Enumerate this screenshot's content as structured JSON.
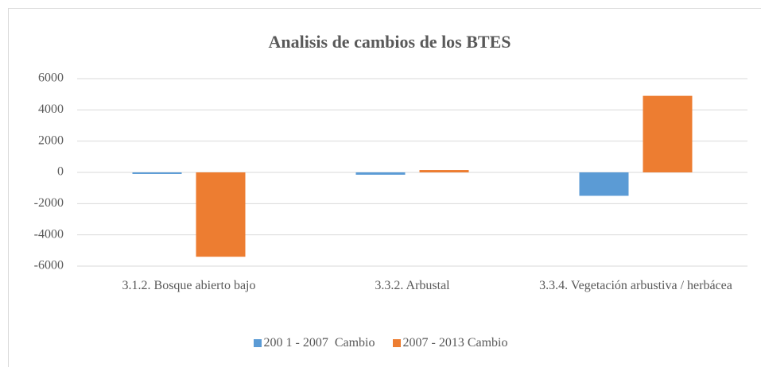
{
  "chart_data": {
    "type": "bar",
    "title": "Analisis de cambios de los BTES",
    "categories": [
      "3.1.2. Bosque abierto bajo",
      "3.3.2. Arbustal",
      "3.3.4. Vegetación arbustiva / herbácea"
    ],
    "series": [
      {
        "name": "200 1 - 2007  Cambio",
        "color": "#5b9bd5",
        "values": [
          -100,
          -150,
          -1500
        ]
      },
      {
        "name": "2007 - 2013 Cambio",
        "color": "#ed7d31",
        "values": [
          -5400,
          150,
          4900
        ]
      }
    ],
    "ylim": [
      -6000,
      6000
    ],
    "yticks": [
      -6000,
      -4000,
      -2000,
      0,
      2000,
      4000,
      6000
    ],
    "grid": true,
    "legend": "bottom"
  }
}
